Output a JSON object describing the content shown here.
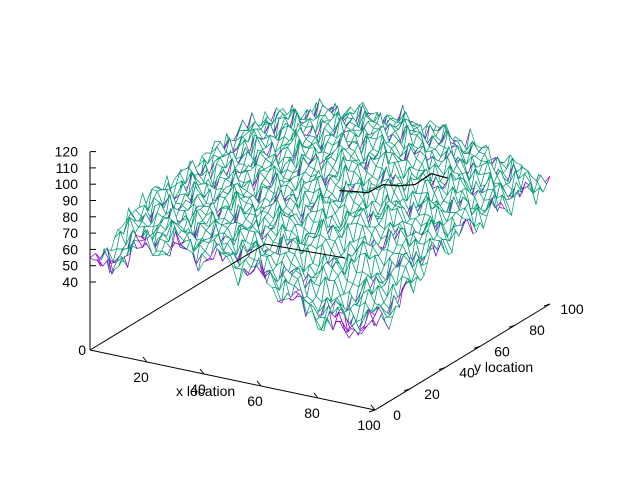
{
  "chart_data": {
    "type": "surface",
    "title": "",
    "xlabel": "x location",
    "ylabel": "y location",
    "zlabel": "",
    "xlim": [
      0,
      100
    ],
    "ylim": [
      0,
      100
    ],
    "zlim": [
      0,
      120
    ],
    "z_ticks_shown": [
      "40",
      "50",
      "60",
      "70",
      "80",
      "90",
      "100",
      "110",
      "120"
    ],
    "z_base_label": "0",
    "x_ticks": [
      "20",
      "40",
      "60",
      "80",
      "100"
    ],
    "y_ticks": [
      "0",
      "20",
      "40",
      "60",
      "80",
      "100"
    ],
    "colors": {
      "top": "#009e73",
      "bottom": "#9400d3",
      "path": "#000000"
    },
    "ridge_profile": {
      "x_side_y0": [
        {
          "x": 0,
          "z": 45
        },
        {
          "x": 10,
          "z": 70
        },
        {
          "x": 20,
          "z": 82
        },
        {
          "x": 30,
          "z": 86
        },
        {
          "x": 40,
          "z": 88
        },
        {
          "x": 50,
          "z": 85
        },
        {
          "x": 60,
          "z": 92
        },
        {
          "x": 70,
          "z": 96
        },
        {
          "x": 80,
          "z": 90
        },
        {
          "x": 90,
          "z": 70
        },
        {
          "x": 100,
          "z": 40
        }
      ],
      "y_side_x100": [
        {
          "y": 0,
          "z": 40
        },
        {
          "y": 20,
          "z": 60
        },
        {
          "y": 40,
          "z": 78
        },
        {
          "y": 60,
          "z": 92
        },
        {
          "y": 80,
          "z": 86
        },
        {
          "y": 100,
          "z": 80
        }
      ]
    },
    "path_points": [
      {
        "x": 74,
        "y": 22,
        "z": 95
      },
      {
        "x": 76,
        "y": 26,
        "z": 93
      },
      {
        "x": 79,
        "y": 30,
        "z": 91
      },
      {
        "x": 82,
        "y": 34,
        "z": 94
      },
      {
        "x": 85,
        "y": 38,
        "z": 92
      },
      {
        "x": 87,
        "y": 44,
        "z": 90
      },
      {
        "x": 89,
        "y": 50,
        "z": 93
      },
      {
        "x": 91,
        "y": 56,
        "z": 88
      }
    ]
  }
}
